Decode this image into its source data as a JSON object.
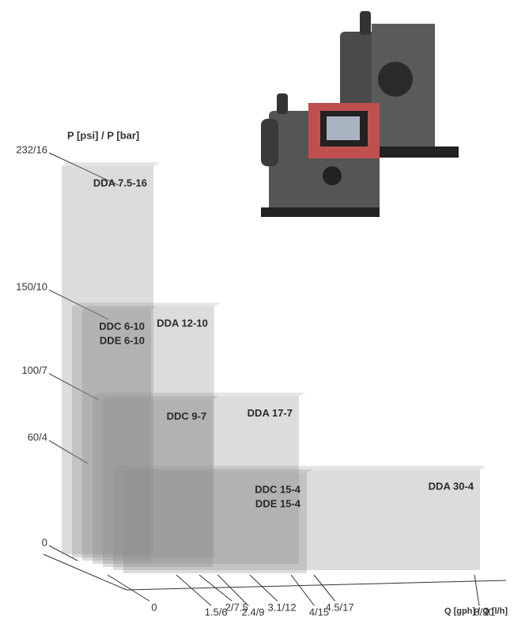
{
  "chart_data": {
    "type": "range-box",
    "y_label": "P [psi] / P [bar]",
    "x_label": "Q [gph] / Q [l/h]",
    "color": "#8a8a8a",
    "series": [
      {
        "labels": [
          "DDA 7.5-16"
        ],
        "flow": 2,
        "pressure": 232
      },
      {
        "labels": [
          "DDA 12-10"
        ],
        "flow": 3.1,
        "pressure": 150
      },
      {
        "labels": [
          "DDC 6-10",
          "DDE 6-10"
        ],
        "flow": 1.5,
        "pressure": 150
      },
      {
        "labels": [
          "DDA 17-7"
        ],
        "flow": 4.5,
        "pressure": 100
      },
      {
        "labels": [
          "DDC 9-7"
        ],
        "flow": 2.4,
        "pressure": 100
      },
      {
        "labels": [
          "DDA 30-4"
        ],
        "flow": 8,
        "pressure": 60
      },
      {
        "labels": [
          "DDC 15-4",
          "DDE 15-4"
        ],
        "flow": 4,
        "pressure": 60
      }
    ],
    "ylim": [
      0,
      232
    ],
    "yticks": [
      0,
      {
        "value": 60,
        "label": "60/4"
      },
      {
        "value": 100,
        "label": "100/7"
      },
      {
        "value": 150,
        "label": "150/10"
      },
      {
        "value": 232,
        "label": "232/16"
      }
    ],
    "xlim": [
      0,
      8
    ],
    "xticks": [
      0,
      {
        "value": 1.5,
        "label": "1.5/6"
      },
      {
        "value": 2,
        "label": "2/7.5"
      },
      {
        "value": 2.4,
        "label": "2.4/9"
      },
      {
        "value": 3.1,
        "label": "3.1/12"
      },
      {
        "value": 4,
        "label": "4/15"
      },
      {
        "value": 4.5,
        "label": "4.5/17"
      },
      {
        "value": 8,
        "label": "8/30"
      }
    ]
  }
}
